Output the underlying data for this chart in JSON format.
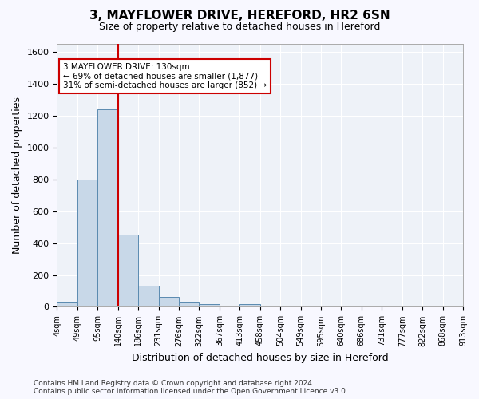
{
  "title_line1": "3, MAYFLOWER DRIVE, HEREFORD, HR2 6SN",
  "title_line2": "Size of property relative to detached houses in Hereford",
  "xlabel": "Distribution of detached houses by size in Hereford",
  "ylabel": "Number of detached properties",
  "bar_values": [
    25,
    800,
    1240,
    455,
    130,
    62,
    25,
    15,
    0,
    15,
    0,
    0,
    0,
    0,
    0,
    0,
    0,
    0,
    0,
    0
  ],
  "bin_labels": [
    "4sqm",
    "49sqm",
    "95sqm",
    "140sqm",
    "186sqm",
    "231sqm",
    "276sqm",
    "322sqm",
    "367sqm",
    "413sqm",
    "458sqm",
    "504sqm",
    "549sqm",
    "595sqm",
    "640sqm",
    "686sqm",
    "731sqm",
    "777sqm",
    "822sqm",
    "868sqm",
    "913sqm"
  ],
  "bar_color": "#c8d8e8",
  "bar_edge_color": "#5a8ab0",
  "background_color": "#eef2f8",
  "grid_color": "#ffffff",
  "red_line_bin": 2,
  "annotation_text": "3 MAYFLOWER DRIVE: 130sqm\n← 69% of detached houses are smaller (1,877)\n31% of semi-detached houses are larger (852) →",
  "annotation_box_color": "#ffffff",
  "annotation_box_edge_color": "#cc0000",
  "footer_line1": "Contains HM Land Registry data © Crown copyright and database right 2024.",
  "footer_line2": "Contains public sector information licensed under the Open Government Licence v3.0.",
  "ylim": [
    0,
    1650
  ],
  "yticks": [
    0,
    200,
    400,
    600,
    800,
    1000,
    1200,
    1400,
    1600
  ]
}
